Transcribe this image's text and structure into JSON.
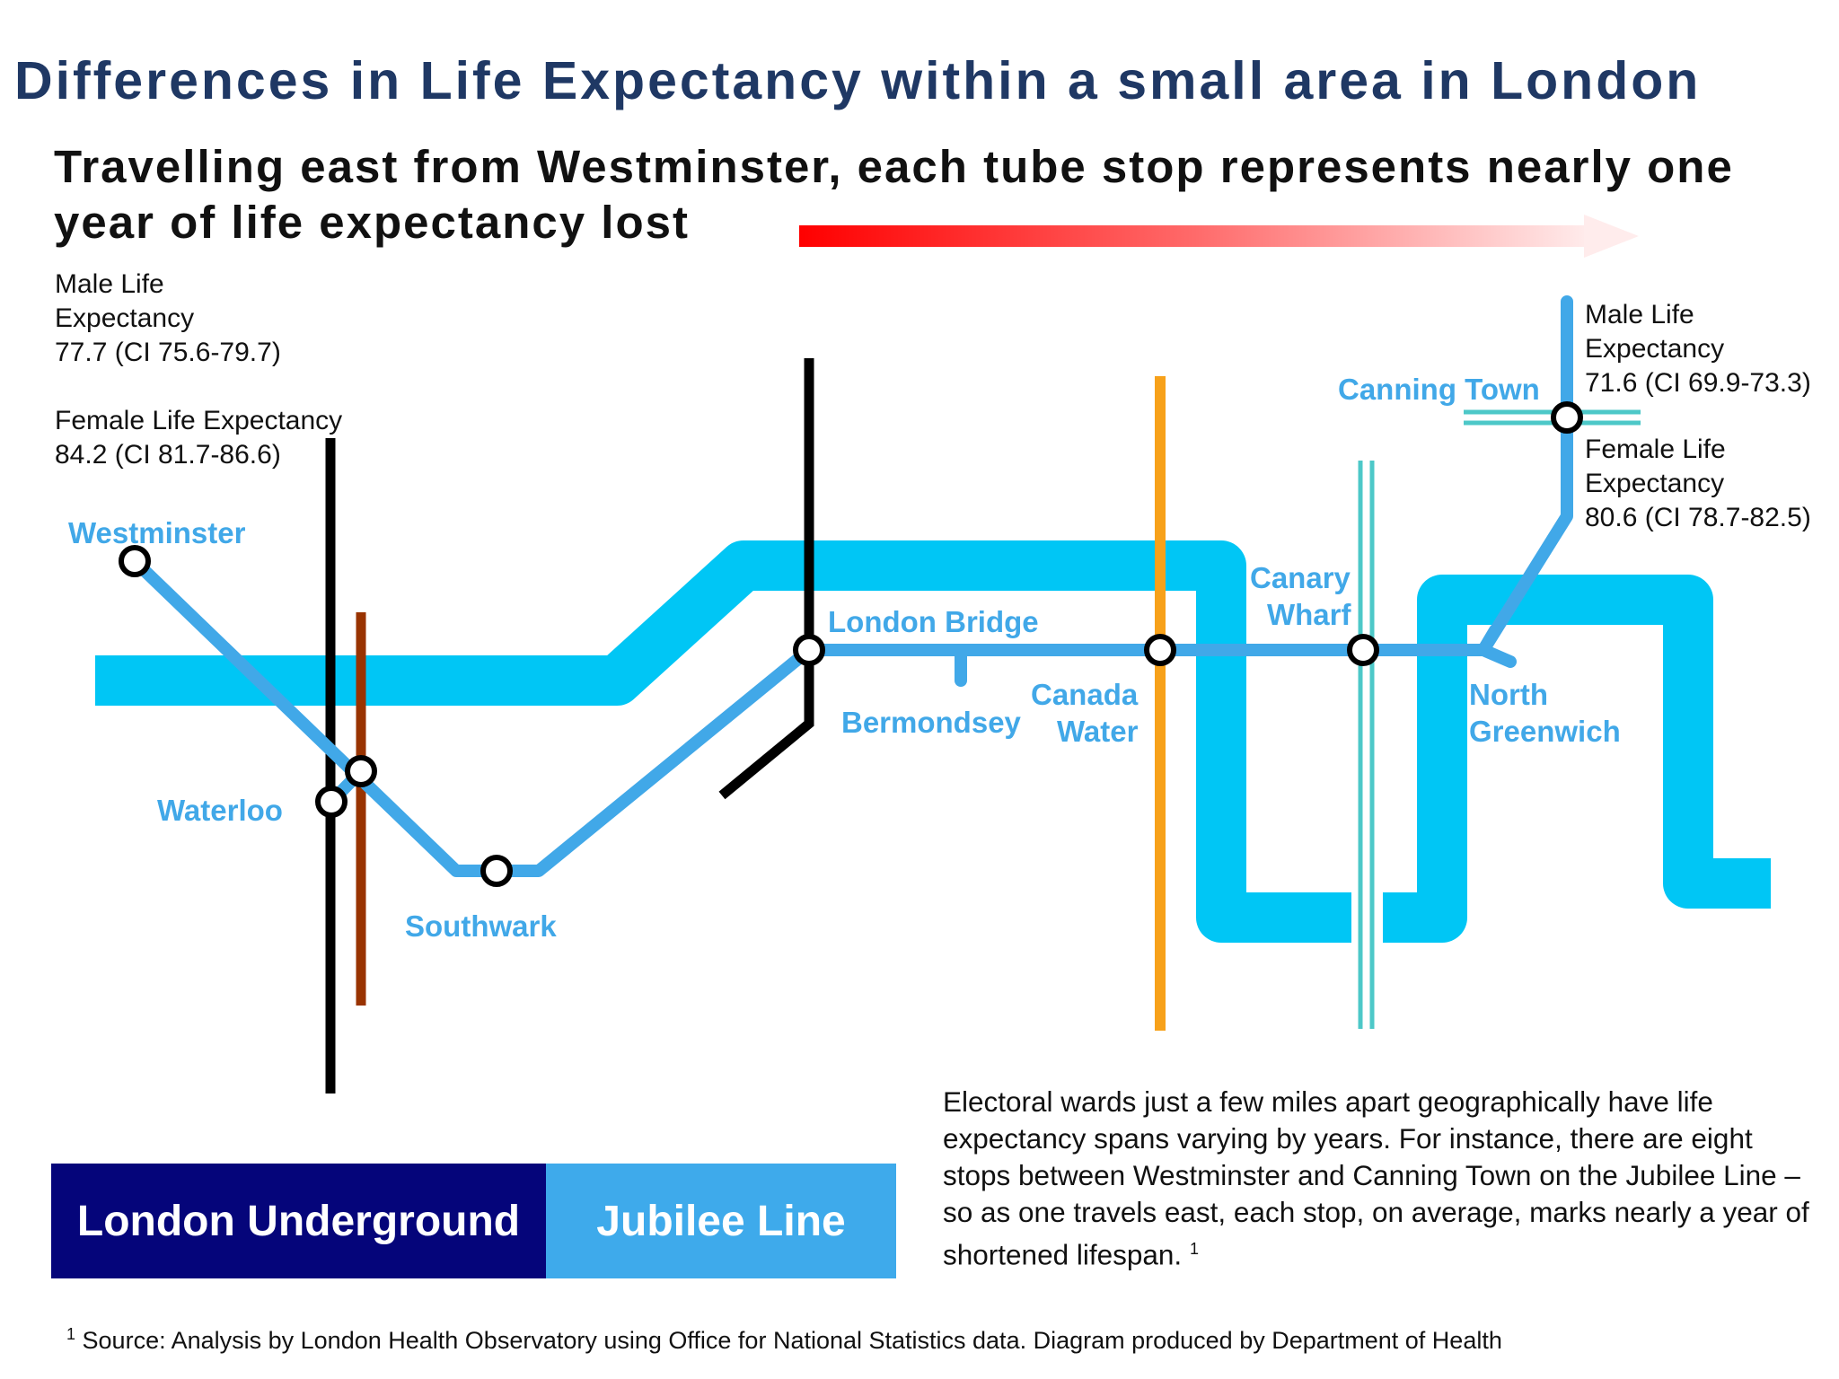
{
  "title": "Differences in Life Expectancy within a small area in London",
  "subtitle": "Travelling east from Westminster, each tube stop represents nearly one year of life expectancy lost",
  "westminster_stats": {
    "male_line1": "Male Life",
    "male_line2": "Expectancy",
    "male_value": "77.7 (CI 75.6-79.7)",
    "female_line1": "Female Life Expectancy",
    "female_value": "84.2 (CI 81.7-86.6)"
  },
  "canning_town_stats": {
    "male_line1": "Male Life",
    "male_line2": "Expectancy",
    "male_value": "71.6 (CI 69.9-73.3)",
    "female_line1": "Female Life",
    "female_line2": "Expectancy",
    "female_value": "80.6 (CI 78.7-82.5)"
  },
  "stations": {
    "westminster": "Westminster",
    "waterloo": "Waterloo",
    "southwark": "Southwark",
    "london_bridge": "London Bridge",
    "bermondsey": "Bermondsey",
    "canada_water_1": "Canada",
    "canada_water_2": "Water",
    "canary_wharf_1": "Canary",
    "canary_wharf_2": "Wharf",
    "north_greenwich_1": "North",
    "north_greenwich_2": "Greenwich",
    "canning_town": "Canning Town"
  },
  "explanation": {
    "text": "Electoral wards just a few miles apart geographically have life expectancy spans varying by years.  For instance, there are eight stops between Westminster and Canning Town on the Jubilee Line – so as one travels east, each stop, on average, marks nearly a year of shortened lifespan.",
    "footnote_mark": "1"
  },
  "brand": {
    "underground": "London Underground",
    "line": "Jubilee Line"
  },
  "footnote": {
    "mark": "1",
    "text": "Source: Analysis by London Health Observatory using Office for National Statistics data. Diagram produced by Department of Health"
  },
  "colors": {
    "title": "#1f3864",
    "river": "#00c6f5",
    "jubilee": "#41a8e8",
    "northern": "#000000",
    "bakerloo": "#993300",
    "overground": "#f7a11a",
    "dlr": "#4dc8c8",
    "arrow_start": "#ff0000",
    "underground_block": "#05057a",
    "jubilee_block": "#3eaaeb"
  }
}
